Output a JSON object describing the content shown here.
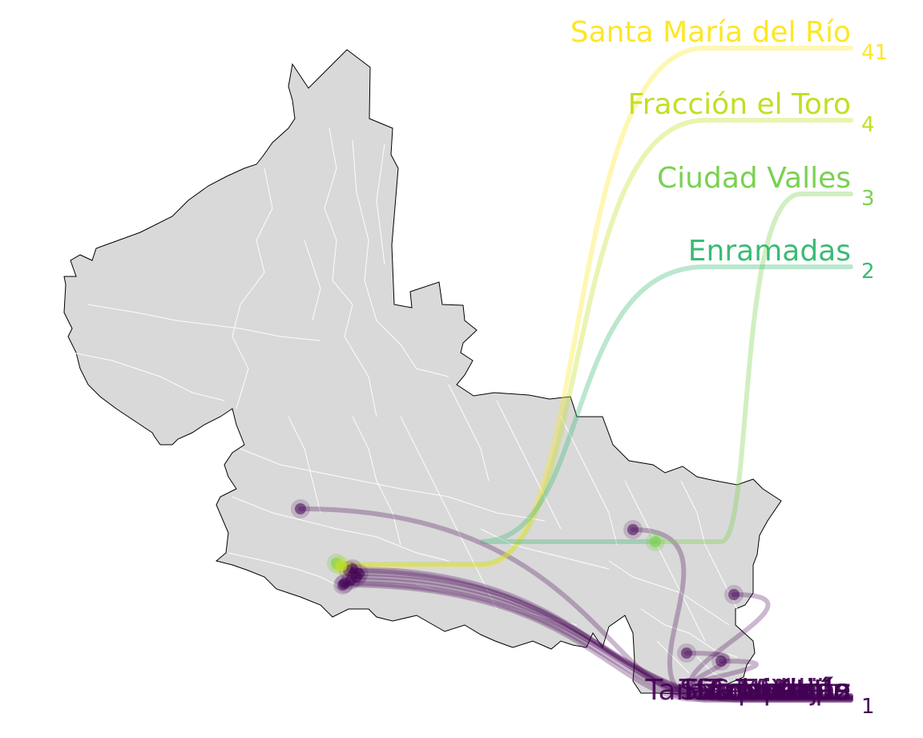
{
  "map": {
    "land_color": "#d9d9d9",
    "outline_color": "#000000",
    "internal_border_color": "#ffffff"
  },
  "destinations": [
    {
      "name": "Santa María del Río",
      "count": "41",
      "color": "#fde725"
    },
    {
      "name": "Fracción el Toro",
      "count": "4",
      "color": "#c2df23"
    },
    {
      "name": "Ciudad Valles",
      "count": "3",
      "color": "#7ad151"
    },
    {
      "name": "Enramadas",
      "count": "2",
      "color": "#3bbb75"
    }
  ],
  "bottom_group": {
    "count": "1",
    "color": "#440154",
    "labels": [
      "San Martín",
      "San Vicente",
      "Matlapa",
      "Tamazunchale",
      "Coxcatlán",
      "Tampacán",
      "Xilitla",
      "Axtla",
      "Tancanhuitz",
      "Huehuetlán",
      "Aquismón",
      "Tanlajás"
    ]
  },
  "origin_color": "#440154"
}
